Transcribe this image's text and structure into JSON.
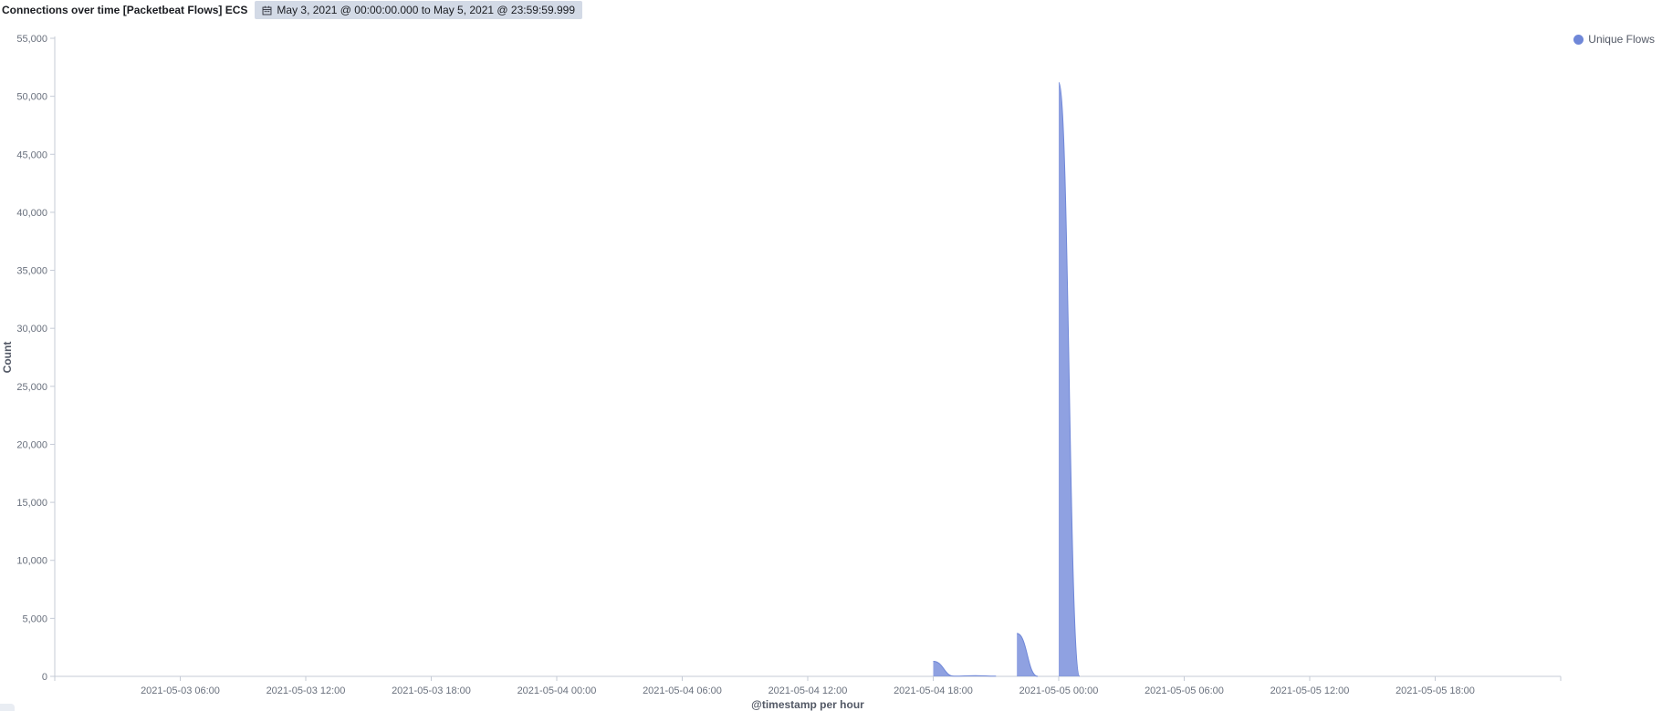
{
  "panel": {
    "title": "Connections over time [Packetbeat Flows] ECS",
    "time_range": "May 3, 2021 @ 00:00:00.000 to May 5, 2021 @ 23:59:59.999",
    "calendar_icon": "calendar-icon"
  },
  "colors": {
    "series": "#6f87d8",
    "axis": "#c5cbd6",
    "tick_text": "#69707d",
    "label_text": "#535966"
  },
  "chart_data": {
    "type": "area",
    "xlabel": "@timestamp per hour",
    "ylabel": "Count",
    "xlim": [
      "2021-05-03 00:00",
      "2021-05-06 00:00"
    ],
    "ylim": [
      0,
      55000
    ],
    "yticks": [
      0,
      5000,
      10000,
      15000,
      20000,
      25000,
      30000,
      35000,
      40000,
      45000,
      50000,
      55000
    ],
    "ytick_labels": [
      "0",
      "5,000",
      "10,000",
      "15,000",
      "20,000",
      "25,000",
      "30,000",
      "35,000",
      "40,000",
      "45,000",
      "50,000",
      "55,000"
    ],
    "xtick_labels": [
      "2021-05-03 06:00",
      "2021-05-03 12:00",
      "2021-05-03 18:00",
      "2021-05-04 00:00",
      "2021-05-04 06:00",
      "2021-05-04 12:00",
      "2021-05-04 18:00",
      "2021-05-05 00:00",
      "2021-05-05 06:00",
      "2021-05-05 12:00",
      "2021-05-05 18:00"
    ],
    "legend_position": "top-right",
    "series": [
      {
        "name": "Unique Flows",
        "segments": [
          [
            [
              "2021-05-04 18:00",
              1300
            ],
            [
              "2021-05-04 19:00",
              20
            ],
            [
              "2021-05-04 20:00",
              60
            ],
            [
              "2021-05-04 21:00",
              20
            ]
          ],
          [
            [
              "2021-05-04 22:00",
              3700
            ],
            [
              "2021-05-04 23:00",
              0
            ]
          ],
          [
            [
              "2021-05-05 00:00",
              51200
            ],
            [
              "2021-05-05 01:00",
              0
            ]
          ]
        ]
      }
    ]
  }
}
